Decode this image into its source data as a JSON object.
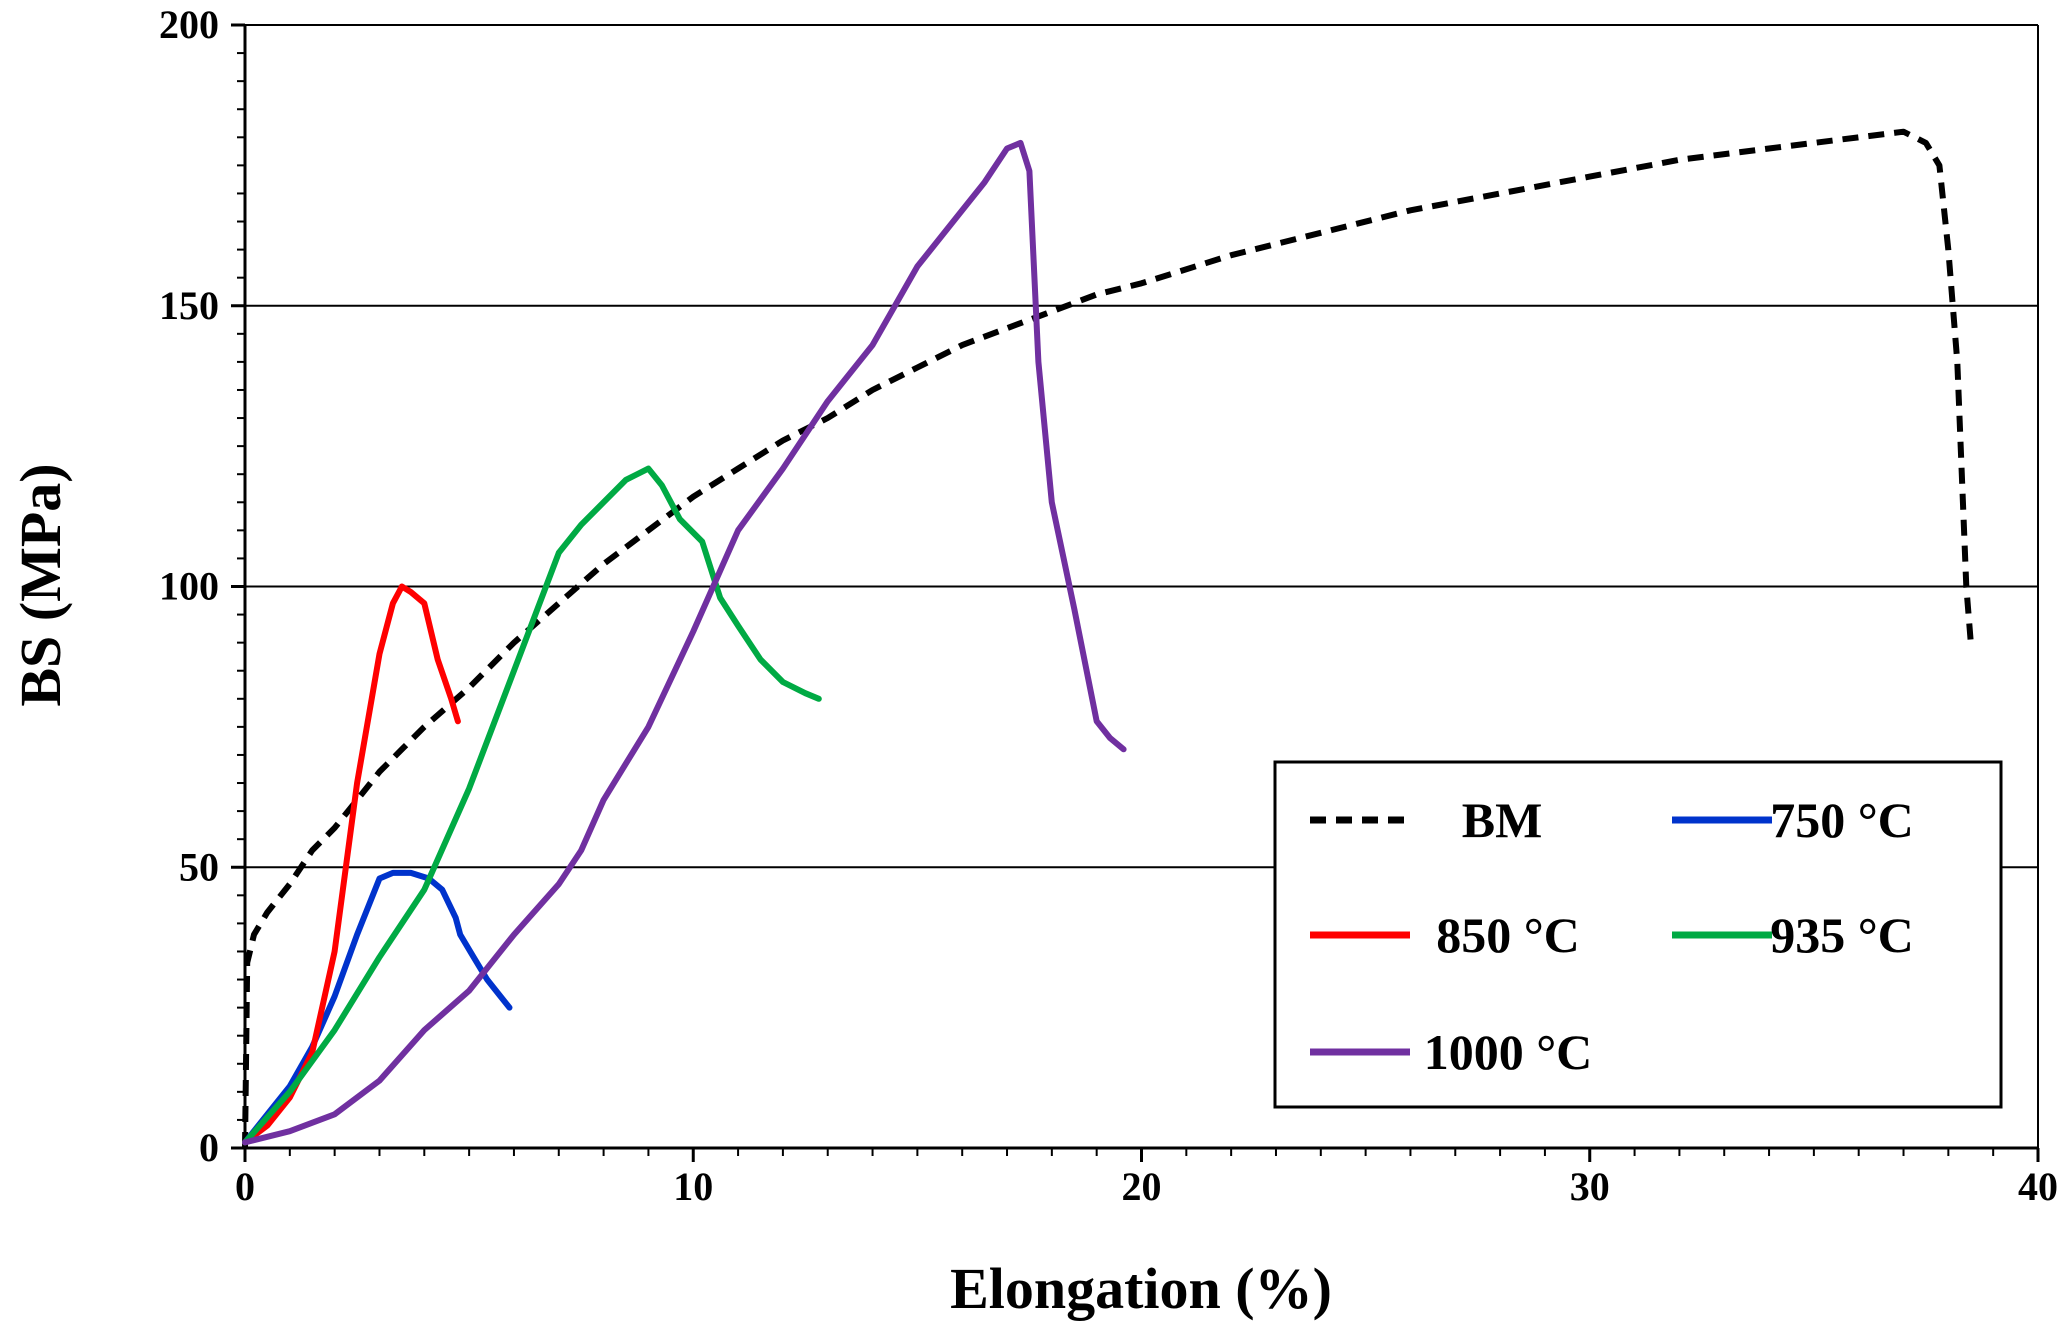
{
  "chart_data": {
    "type": "line",
    "xlabel": "Elongation (%)",
    "ylabel": "BS (MPa)",
    "xlim": [
      0,
      40
    ],
    "ylim": [
      0,
      200
    ],
    "xticks": [
      0,
      10,
      20,
      30,
      40
    ],
    "yticks": [
      0,
      50,
      100,
      150,
      200
    ],
    "xtick_labels": [
      "0",
      "10",
      "20",
      "30",
      "40"
    ],
    "ytick_labels": [
      "0",
      "50",
      "100",
      "150",
      "200"
    ],
    "gridlines_y": [
      50,
      100,
      150
    ],
    "legend_position": "bottom-right",
    "series": [
      {
        "name": "BM",
        "color": "#000000",
        "dash": true,
        "x": [
          0,
          0.05,
          0.2,
          0.5,
          1,
          1.5,
          2,
          2.5,
          3,
          3.5,
          4,
          5,
          6,
          7,
          8,
          9,
          10,
          11,
          12,
          13,
          14,
          15,
          16,
          17,
          18,
          19,
          20,
          22,
          24,
          26,
          28,
          30,
          32,
          34,
          35,
          36,
          37,
          37.5,
          37.8,
          38.0,
          38.2,
          38.3,
          38.4,
          38.5
        ],
        "y": [
          0,
          33,
          38,
          42,
          47,
          53,
          57,
          62,
          67,
          71,
          75,
          82,
          90,
          97,
          104,
          110,
          116,
          121,
          126,
          130,
          135,
          139,
          143,
          146,
          149,
          152,
          154,
          159,
          163,
          167,
          170,
          173,
          176,
          178,
          179,
          180,
          181,
          179,
          175,
          160,
          140,
          120,
          100,
          90
        ]
      },
      {
        "name": "750 °C",
        "color": "#0033cc",
        "dash": false,
        "x": [
          0,
          0.5,
          1,
          1.5,
          2,
          2.5,
          3,
          3.3,
          3.7,
          4.1,
          4.4,
          4.7,
          4.8,
          5.1,
          5.4,
          5.7,
          5.9
        ],
        "y": [
          1,
          6,
          11,
          18,
          27,
          38,
          48,
          49,
          49,
          48,
          46,
          41,
          38,
          34,
          30,
          27,
          25
        ]
      },
      {
        "name": "850 °C",
        "color": "#ff0000",
        "dash": false,
        "x": [
          0,
          0.5,
          1,
          1.5,
          2,
          2.5,
          3,
          3.3,
          3.5,
          3.7,
          4.0,
          4.3,
          4.6,
          4.75
        ],
        "y": [
          1,
          4,
          9,
          17,
          35,
          65,
          88,
          97,
          100,
          99,
          97,
          87,
          80,
          76
        ]
      },
      {
        "name": "935 °C",
        "color": "#00aa44",
        "dash": false,
        "x": [
          0,
          1,
          2,
          3,
          4,
          5,
          6,
          7,
          7.5,
          8,
          8.5,
          9,
          9.3,
          9.7,
          10.2,
          10.6,
          11,
          11.5,
          12,
          12.5,
          12.8
        ],
        "y": [
          1,
          10,
          21,
          34,
          46,
          64,
          85,
          106,
          111,
          115,
          119,
          121,
          118,
          112,
          108,
          98,
          93,
          87,
          83,
          81,
          80
        ]
      },
      {
        "name": "1000 °C",
        "color": "#7030a0",
        "dash": false,
        "x": [
          0,
          1,
          2,
          3,
          4,
          5,
          6,
          7,
          7.5,
          8,
          9,
          10,
          11,
          12,
          13,
          14,
          15,
          16,
          16.5,
          17,
          17.3,
          17.5,
          17.7,
          18,
          18.5,
          19,
          19.3,
          19.6
        ],
        "y": [
          1,
          3,
          6,
          12,
          21,
          28,
          38,
          47,
          53,
          62,
          75,
          92,
          110,
          121,
          133,
          143,
          157,
          167,
          172,
          178,
          179,
          174,
          140,
          115,
          96,
          76,
          73,
          71
        ]
      }
    ]
  }
}
